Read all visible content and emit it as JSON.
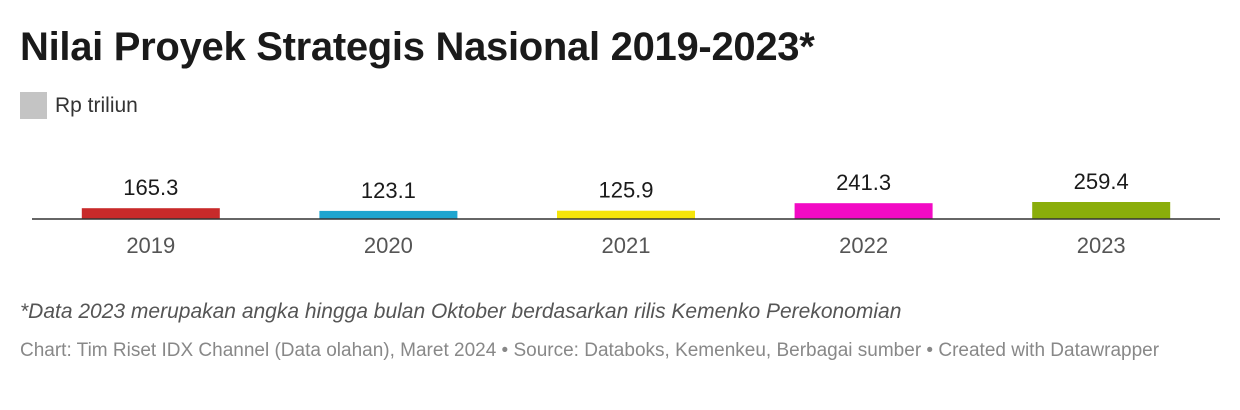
{
  "title": "Nilai Proyek Strategis Nasional 2019-2023*",
  "legend": {
    "label": "Rp triliun",
    "color": "#c4c4c4"
  },
  "note": "*Data 2023 merupakan angka hingga bulan Oktober berdasarkan rilis Kemenko Perekonomian",
  "credits": "Chart: Tim Riset IDX Channel (Data olahan), Maret 2024 • Source: Databoks, Kemenkeu, Berbagai sumber • Created with Datawrapper",
  "chart_data": {
    "type": "bar",
    "categories": [
      "2019",
      "2020",
      "2021",
      "2022",
      "2023"
    ],
    "values": [
      165.3,
      123.1,
      125.9,
      241.3,
      259.4
    ],
    "value_labels": [
      "165.3",
      "123.1",
      "125.9",
      "241.3",
      "259.4"
    ],
    "colors": [
      "#c82a2a",
      "#1ea5cf",
      "#f5e50a",
      "#f20ac4",
      "#8aad0a"
    ],
    "ylim": [
      0,
      259.4
    ],
    "grid": false
  }
}
